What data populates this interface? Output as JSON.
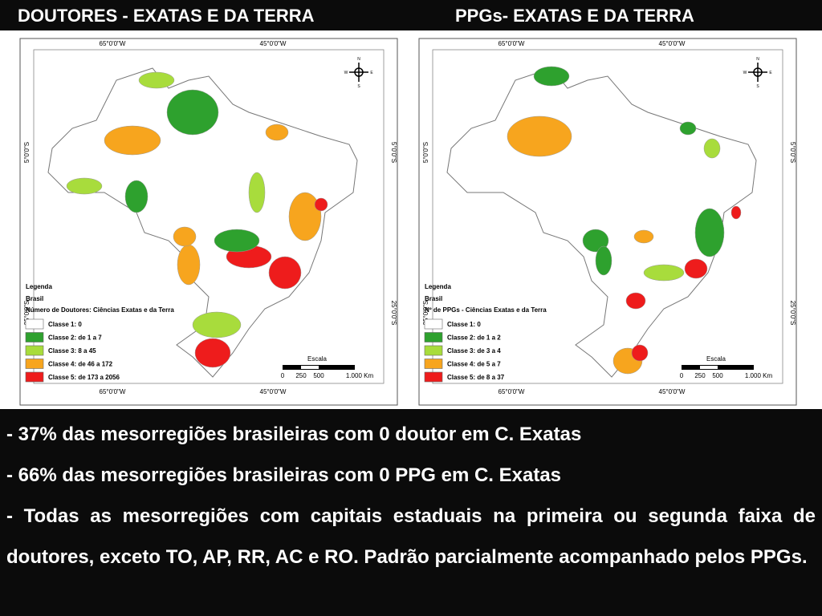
{
  "slide": {
    "titles": [
      "DOUTORES - EXATAS E DA TERRA",
      "PPGs- EXATAS E DA TERRA"
    ]
  },
  "maps": [
    {
      "top_coords": [
        "65°0'0\"W",
        "45°0'0\"W"
      ],
      "bottom_coords": [
        "65°0'0\"W",
        "45°0'0\"W"
      ],
      "left_coords": [
        "5°0'0\"S",
        "25°0'0\"S"
      ],
      "right_coords": [
        "5°0'0\"S",
        "25°0'0\"S"
      ],
      "compass": [
        "N",
        "S",
        "E",
        "W"
      ],
      "legend": {
        "heading": "Legenda",
        "layer": "Brasil",
        "title": "Número de Doutores: Ciências Exatas e da Terra",
        "classes": [
          {
            "label": "Classe 1: 0",
            "color": "#ffffff"
          },
          {
            "label": "Classe 2: de 1 a 7",
            "color": "#2ea12e"
          },
          {
            "label": "Classe 3: 8 a 45",
            "color": "#a8dc3c"
          },
          {
            "label": "Classe 4: de 46 a 172",
            "color": "#f7a51e"
          },
          {
            "label": "Classe 5: de 173 a 2056",
            "color": "#ee1c1c"
          }
        ]
      },
      "scale": {
        "title": "Escala",
        "labels": [
          "0",
          "250",
          "500",
          "1.000 Km"
        ]
      }
    },
    {
      "top_coords": [
        "65°0'0\"W",
        "45°0'0\"W"
      ],
      "bottom_coords": [
        "65°0'0\"W",
        "45°0'0\"W"
      ],
      "left_coords": [
        "5°0'0\"S",
        "25°0'0\"S"
      ],
      "right_coords": [
        "5°0'0\"S",
        "25°0'0\"S"
      ],
      "compass": [
        "N",
        "S",
        "E",
        "W"
      ],
      "legend": {
        "heading": "Legenda",
        "layer": "Brasil",
        "title": "Nº de PPGs - Ciências Exatas e da Terra",
        "classes": [
          {
            "label": "Classe 1: 0",
            "color": "#ffffff"
          },
          {
            "label": "Classe 2: de 1 a 2",
            "color": "#2ea12e"
          },
          {
            "label": "Classe 3: de 3 a 4",
            "color": "#a8dc3c"
          },
          {
            "label": "Classe 4: de 5 a 7",
            "color": "#f7a51e"
          },
          {
            "label": "Classe 5: de 8 a 37",
            "color": "#ee1c1c"
          }
        ]
      },
      "scale": {
        "title": "Escala",
        "labels": [
          "0",
          "250",
          "500",
          "1.000 Km"
        ]
      }
    }
  ],
  "bullets": [
    "- 37% das mesorregiões brasileiras com 0 doutor em C. Exatas",
    "- 66% das mesorregiões brasileiras com 0 PPG em C. Exatas",
    "- Todas as mesorregiões com capitais estaduais na primeira ou segunda faixa de doutores, exceto TO, AP, RR, AC e RO. Padrão parcialmente acompanhado pelos PPGs."
  ]
}
